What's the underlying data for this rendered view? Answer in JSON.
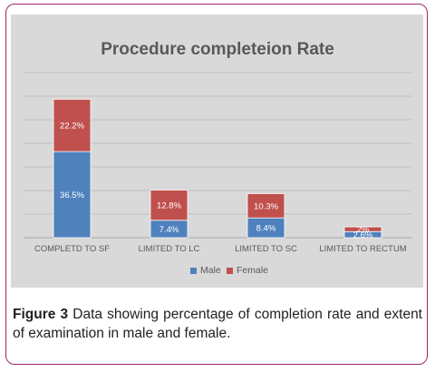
{
  "chart_data": {
    "type": "bar",
    "stacked": true,
    "title": "Procedure completeion Rate",
    "categories": [
      "COMPLETD TO SF",
      "LIMITED TO LC",
      "LIMITED TO SC",
      "LIMITED TO RECTUM"
    ],
    "series": [
      {
        "name": "Male",
        "color": "#4f81bd",
        "values": [
          36.5,
          7.4,
          8.4,
          2.6
        ],
        "labels": [
          "36.5%",
          "7.4%",
          "8.4%",
          "2.6%"
        ]
      },
      {
        "name": "Female",
        "color": "#c0504d",
        "values": [
          22.2,
          12.8,
          10.3,
          2.0
        ],
        "labels": [
          "22.2%",
          "12.8%",
          "10.3%",
          "2%"
        ]
      }
    ],
    "ylim": [
      0,
      70
    ],
    "grid": true,
    "legend": "bottom"
  },
  "caption": {
    "label": "Figure 3",
    "text": " Data showing percentage of completion rate and extent of examination in male and female."
  }
}
